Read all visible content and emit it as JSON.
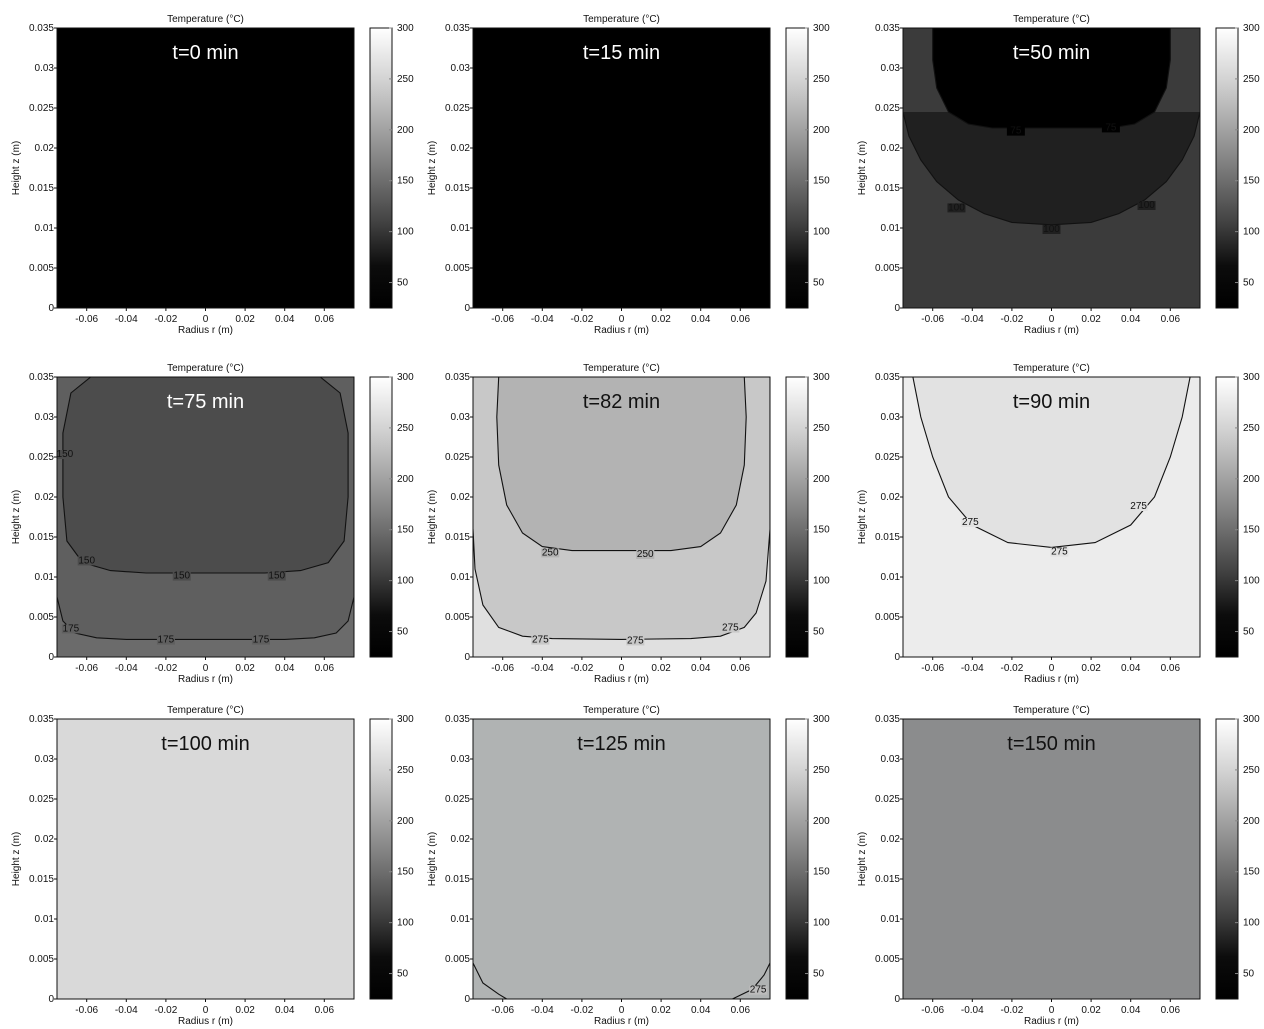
{
  "chart_data": [
    {
      "type": "heatmap",
      "title": "Temperature (°C)",
      "time_label": "t=0 min",
      "xlabel": "Radius r (m)",
      "ylabel": "Height z (m)",
      "xlim": [
        -0.075,
        0.075
      ],
      "ylim": [
        0,
        0.035
      ],
      "x_ticks": [
        "-0.06",
        "-0.04",
        "-0.02",
        "0",
        "0.02",
        "0.04",
        "0.06"
      ],
      "y_ticks": [
        "0",
        "0.005",
        "0.01",
        "0.015",
        "0.02",
        "0.025",
        "0.03",
        "0.035"
      ],
      "colorbar_ticks": [
        "50",
        "100",
        "150",
        "200",
        "250",
        "300"
      ],
      "colorbar_range": [
        25,
        300
      ],
      "colormap": "gray",
      "background_color": "#000000",
      "text_color": "#ffffff",
      "contours": []
    },
    {
      "type": "heatmap",
      "title": "Temperature (°C)",
      "time_label": "t=15 min",
      "xlabel": "Radius r (m)",
      "ylabel": "Height z (m)",
      "xlim": [
        -0.075,
        0.075
      ],
      "ylim": [
        0,
        0.035
      ],
      "x_ticks": [
        "-0.06",
        "-0.04",
        "-0.02",
        "0",
        "0.02",
        "0.04",
        "0.06"
      ],
      "y_ticks": [
        "0",
        "0.005",
        "0.01",
        "0.015",
        "0.02",
        "0.025",
        "0.03",
        "0.035"
      ],
      "colorbar_ticks": [
        "50",
        "100",
        "150",
        "200",
        "250",
        "300"
      ],
      "colorbar_range": [
        25,
        300
      ],
      "colormap": "gray",
      "background_color": "#000000",
      "text_color": "#ffffff",
      "contours": []
    },
    {
      "type": "heatmap",
      "title": "Temperature (°C)",
      "time_label": "t=50 min",
      "xlabel": "Radius r (m)",
      "ylabel": "Height z (m)",
      "xlim": [
        -0.075,
        0.075
      ],
      "ylim": [
        0,
        0.035
      ],
      "x_ticks": [
        "-0.06",
        "-0.04",
        "-0.02",
        "0",
        "0.02",
        "0.04",
        "0.06"
      ],
      "y_ticks": [
        "0",
        "0.005",
        "0.01",
        "0.015",
        "0.02",
        "0.025",
        "0.03",
        "0.035"
      ],
      "colorbar_ticks": [
        "50",
        "100",
        "150",
        "200",
        "250",
        "300"
      ],
      "colorbar_range": [
        25,
        300
      ],
      "colormap": "gray",
      "background_color": "#3b3b3b",
      "text_color": "#ffffff",
      "contours": [
        {
          "label": "100",
          "fill": "#202020",
          "points": [
            [
              -0.075,
              0.0245
            ],
            [
              -0.072,
              0.0215
            ],
            [
              -0.066,
              0.0185
            ],
            [
              -0.058,
              0.0158
            ],
            [
              -0.047,
              0.0135
            ],
            [
              -0.034,
              0.0118
            ],
            [
              -0.02,
              0.0107
            ],
            [
              0,
              0.0104
            ],
            [
              0.02,
              0.0107
            ],
            [
              0.034,
              0.0118
            ],
            [
              0.047,
              0.0135
            ],
            [
              0.058,
              0.0158
            ],
            [
              0.066,
              0.0185
            ],
            [
              0.072,
              0.0215
            ],
            [
              0.075,
              0.0245
            ]
          ],
          "labels": [
            {
              "x": -0.048,
              "y": 0.0122,
              "t": "100"
            },
            {
              "x": 0.0,
              "y": 0.0095,
              "t": "100"
            },
            {
              "x": 0.048,
              "y": 0.0125,
              "t": "100"
            }
          ]
        },
        {
          "label": "75",
          "fill": "#000000",
          "points": [
            [
              -0.06,
              0.035
            ],
            [
              -0.06,
              0.031
            ],
            [
              -0.058,
              0.0275
            ],
            [
              -0.052,
              0.0245
            ],
            [
              -0.042,
              0.023
            ],
            [
              -0.03,
              0.0225
            ],
            [
              0.03,
              0.0225
            ],
            [
              0.042,
              0.023
            ],
            [
              0.052,
              0.0245
            ],
            [
              0.058,
              0.0275
            ],
            [
              0.06,
              0.031
            ],
            [
              0.06,
              0.035
            ]
          ],
          "labels": [
            {
              "x": -0.018,
              "y": 0.0218,
              "t": "75"
            },
            {
              "x": 0.03,
              "y": 0.0222,
              "t": "75"
            }
          ]
        }
      ]
    },
    {
      "type": "heatmap",
      "title": "Temperature (°C)",
      "time_label": "t=75 min",
      "xlabel": "Radius r (m)",
      "ylabel": "Height z (m)",
      "xlim": [
        -0.075,
        0.075
      ],
      "ylim": [
        0,
        0.035
      ],
      "x_ticks": [
        "-0.06",
        "-0.04",
        "-0.02",
        "0",
        "0.02",
        "0.04",
        "0.06"
      ],
      "y_ticks": [
        "0",
        "0.005",
        "0.01",
        "0.015",
        "0.02",
        "0.025",
        "0.03",
        "0.035"
      ],
      "colorbar_ticks": [
        "50",
        "100",
        "150",
        "200",
        "250",
        "300"
      ],
      "colorbar_range": [
        25,
        300
      ],
      "colormap": "gray",
      "background_color": "#6b6b6b",
      "text_color": "#ffffff",
      "contours": [
        {
          "label": "175",
          "fill": "#5f5f5f",
          "points": [
            [
              -0.075,
              0.0075
            ],
            [
              -0.072,
              0.0045
            ],
            [
              -0.066,
              0.003
            ],
            [
              -0.055,
              0.0024
            ],
            [
              -0.04,
              0.0022
            ],
            [
              0,
              0.0022
            ],
            [
              0.04,
              0.0022
            ],
            [
              0.055,
              0.0024
            ],
            [
              0.066,
              0.003
            ],
            [
              0.072,
              0.0045
            ],
            [
              0.075,
              0.0075
            ],
            [
              0.075,
              0.035
            ],
            [
              -0.075,
              0.035
            ]
          ],
          "labels": [
            {
              "x": -0.068,
              "y": 0.0032,
              "t": "175"
            },
            {
              "x": -0.02,
              "y": 0.0018,
              "t": "175"
            },
            {
              "x": 0.028,
              "y": 0.0018,
              "t": "175"
            }
          ]
        },
        {
          "label": "150",
          "fill": "#4c4c4c",
          "points": [
            [
              -0.058,
              0.035
            ],
            [
              -0.068,
              0.033
            ],
            [
              -0.072,
              0.028
            ],
            [
              -0.072,
              0.02
            ],
            [
              -0.07,
              0.0145
            ],
            [
              -0.062,
              0.0118
            ],
            [
              -0.048,
              0.0108
            ],
            [
              -0.03,
              0.0105
            ],
            [
              0,
              0.0105
            ],
            [
              0.03,
              0.0105
            ],
            [
              0.048,
              0.0108
            ],
            [
              0.062,
              0.0118
            ],
            [
              0.07,
              0.0145
            ],
            [
              0.072,
              0.02
            ],
            [
              0.072,
              0.028
            ],
            [
              0.068,
              0.033
            ],
            [
              0.058,
              0.035
            ]
          ],
          "labels": [
            {
              "x": -0.071,
              "y": 0.025,
              "t": "150"
            },
            {
              "x": -0.06,
              "y": 0.0117,
              "t": "150"
            },
            {
              "x": -0.012,
              "y": 0.0098,
              "t": "150"
            },
            {
              "x": 0.036,
              "y": 0.0098,
              "t": "150"
            }
          ]
        }
      ]
    },
    {
      "type": "heatmap",
      "title": "Temperature (°C)",
      "time_label": "t=82 min",
      "xlabel": "Radius r (m)",
      "ylabel": "Height z (m)",
      "xlim": [
        -0.075,
        0.075
      ],
      "ylim": [
        0,
        0.035
      ],
      "x_ticks": [
        "-0.06",
        "-0.04",
        "-0.02",
        "0",
        "0.02",
        "0.04",
        "0.06"
      ],
      "y_ticks": [
        "0",
        "0.005",
        "0.01",
        "0.015",
        "0.02",
        "0.025",
        "0.03",
        "0.035"
      ],
      "colorbar_ticks": [
        "50",
        "100",
        "150",
        "200",
        "250",
        "300"
      ],
      "colorbar_range": [
        25,
        300
      ],
      "colormap": "gray",
      "background_color": "#e0e0e0",
      "text_color": "#111111",
      "contours": [
        {
          "label": "275",
          "fill": "#c8c8c8",
          "points": [
            [
              -0.075,
              0.016
            ],
            [
              -0.074,
              0.011
            ],
            [
              -0.07,
              0.0065
            ],
            [
              -0.062,
              0.0037
            ],
            [
              -0.05,
              0.0026
            ],
            [
              -0.035,
              0.0023
            ],
            [
              0,
              0.0022
            ],
            [
              0.035,
              0.0023
            ],
            [
              0.05,
              0.0026
            ],
            [
              0.062,
              0.0037
            ],
            [
              0.068,
              0.0055
            ],
            [
              0.073,
              0.0095
            ],
            [
              0.075,
              0.016
            ],
            [
              0.075,
              0.035
            ],
            [
              -0.075,
              0.035
            ]
          ],
          "labels": [
            {
              "x": -0.041,
              "y": 0.0018,
              "t": "275"
            },
            {
              "x": 0.007,
              "y": 0.0017,
              "t": "275"
            },
            {
              "x": 0.055,
              "y": 0.0033,
              "t": "275"
            }
          ]
        },
        {
          "label": "250",
          "fill": "#b3b3b3",
          "points": [
            [
              -0.062,
              0.035
            ],
            [
              -0.063,
              0.03
            ],
            [
              -0.062,
              0.024
            ],
            [
              -0.058,
              0.019
            ],
            [
              -0.05,
              0.0155
            ],
            [
              -0.04,
              0.0138
            ],
            [
              -0.025,
              0.0133
            ],
            [
              0,
              0.0133
            ],
            [
              0.025,
              0.0133
            ],
            [
              0.04,
              0.0138
            ],
            [
              0.05,
              0.0155
            ],
            [
              0.058,
              0.019
            ],
            [
              0.062,
              0.024
            ],
            [
              0.063,
              0.03
            ],
            [
              0.062,
              0.035
            ]
          ],
          "labels": [
            {
              "x": -0.036,
              "y": 0.0127,
              "t": "250"
            },
            {
              "x": 0.012,
              "y": 0.0125,
              "t": "250"
            }
          ]
        }
      ]
    },
    {
      "type": "heatmap",
      "title": "Temperature (°C)",
      "time_label": "t=90 min",
      "xlabel": "Radius r (m)",
      "ylabel": "Height z (m)",
      "xlim": [
        -0.075,
        0.075
      ],
      "ylim": [
        0,
        0.035
      ],
      "x_ticks": [
        "-0.06",
        "-0.04",
        "-0.02",
        "0",
        "0.02",
        "0.04",
        "0.06"
      ],
      "y_ticks": [
        "0",
        "0.005",
        "0.01",
        "0.015",
        "0.02",
        "0.025",
        "0.03",
        "0.035"
      ],
      "colorbar_ticks": [
        "50",
        "100",
        "150",
        "200",
        "250",
        "300"
      ],
      "colorbar_range": [
        25,
        300
      ],
      "colormap": "gray",
      "background_color": "#ececec",
      "text_color": "#111111",
      "contours": [
        {
          "label": "275",
          "fill": "#e2e2e2",
          "points": [
            [
              -0.07,
              0.035
            ],
            [
              -0.066,
              0.03
            ],
            [
              -0.06,
              0.025
            ],
            [
              -0.052,
              0.02
            ],
            [
              -0.04,
              0.0165
            ],
            [
              -0.022,
              0.0143
            ],
            [
              0,
              0.0137
            ],
            [
              0.022,
              0.0143
            ],
            [
              0.04,
              0.0165
            ],
            [
              0.052,
              0.02
            ],
            [
              0.06,
              0.025
            ],
            [
              0.066,
              0.03
            ],
            [
              0.07,
              0.035
            ]
          ],
          "labels": [
            {
              "x": -0.041,
              "y": 0.0165,
              "t": "275"
            },
            {
              "x": 0.004,
              "y": 0.0128,
              "t": "275"
            },
            {
              "x": 0.044,
              "y": 0.0185,
              "t": "275"
            }
          ]
        }
      ]
    },
    {
      "type": "heatmap",
      "title": "Temperature (°C)",
      "time_label": "t=100 min",
      "xlabel": "Radius r (m)",
      "ylabel": "Height z (m)",
      "xlim": [
        -0.075,
        0.075
      ],
      "ylim": [
        0,
        0.035
      ],
      "x_ticks": [
        "-0.06",
        "-0.04",
        "-0.02",
        "0",
        "0.02",
        "0.04",
        "0.06"
      ],
      "y_ticks": [
        "0",
        "0.005",
        "0.01",
        "0.015",
        "0.02",
        "0.025",
        "0.03",
        "0.035"
      ],
      "colorbar_ticks": [
        "50",
        "100",
        "150",
        "200",
        "250",
        "300"
      ],
      "colorbar_range": [
        25,
        300
      ],
      "colormap": "gray",
      "background_color": "#d9d9d9",
      "text_color": "#111111",
      "contours": []
    },
    {
      "type": "heatmap",
      "title": "Temperature (°C)",
      "time_label": "t=125 min",
      "xlabel": "Radius r (m)",
      "ylabel": "Height z (m)",
      "xlim": [
        -0.075,
        0.075
      ],
      "ylim": [
        0,
        0.035
      ],
      "x_ticks": [
        "-0.06",
        "-0.04",
        "-0.02",
        "0",
        "0.02",
        "0.04",
        "0.06"
      ],
      "y_ticks": [
        "0",
        "0.005",
        "0.01",
        "0.015",
        "0.02",
        "0.025",
        "0.03",
        "0.035"
      ],
      "colorbar_ticks": [
        "50",
        "100",
        "150",
        "200",
        "250",
        "300"
      ],
      "colorbar_range": [
        25,
        300
      ],
      "colormap": "gray",
      "background_color": "#b0b3b3",
      "text_color": "#111111",
      "contours": [
        {
          "label": "275",
          "fill": "#bcbcbc",
          "open": true,
          "points": [
            [
              -0.075,
              0.0045
            ],
            [
              -0.07,
              0.002
            ],
            [
              -0.062,
              0.0006
            ],
            [
              -0.058,
              0
            ]
          ],
          "labels": []
        },
        {
          "label": "275",
          "fill": "#bcbcbc",
          "open": true,
          "points": [
            [
              0.056,
              0
            ],
            [
              0.066,
              0.0012
            ],
            [
              0.072,
              0.003
            ],
            [
              0.075,
              0.0045
            ]
          ],
          "labels": [
            {
              "x": 0.069,
              "y": 0.0008,
              "t": "275"
            }
          ]
        }
      ]
    },
    {
      "type": "heatmap",
      "title": "Temperature (°C)",
      "time_label": "t=150 min",
      "xlabel": "Radius r (m)",
      "ylabel": "Height z (m)",
      "xlim": [
        -0.075,
        0.075
      ],
      "ylim": [
        0,
        0.035
      ],
      "x_ticks": [
        "-0.06",
        "-0.04",
        "-0.02",
        "0",
        "0.02",
        "0.04",
        "0.06"
      ],
      "y_ticks": [
        "0",
        "0.005",
        "0.01",
        "0.015",
        "0.02",
        "0.025",
        "0.03",
        "0.035"
      ],
      "colorbar_ticks": [
        "50",
        "100",
        "150",
        "200",
        "250",
        "300"
      ],
      "colorbar_range": [
        25,
        300
      ],
      "colormap": "gray",
      "background_color": "#8b8c8d",
      "text_color": "#111111",
      "contours": []
    }
  ]
}
